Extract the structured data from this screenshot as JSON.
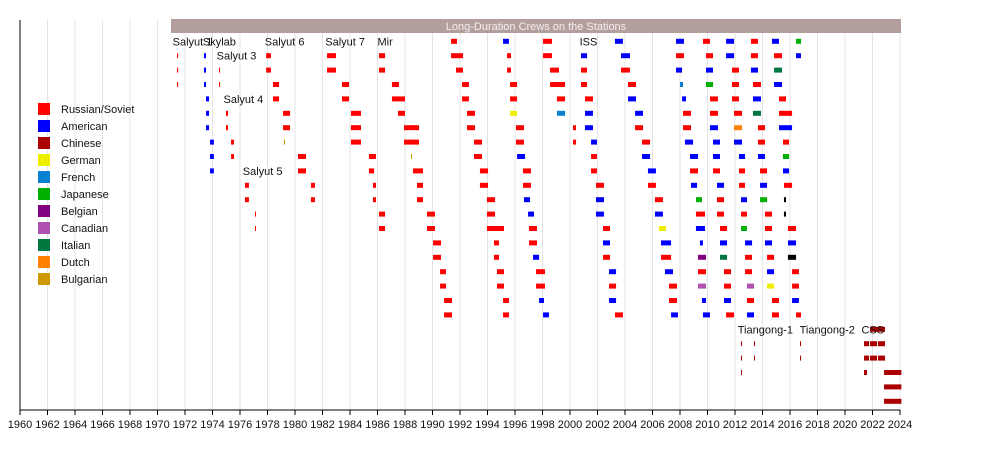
{
  "chart_data": {
    "type": "timeline",
    "title": "Long-Duration Crews on the Stations",
    "xlim": [
      1960,
      2024
    ],
    "x_ticks": [
      "1960",
      "1962",
      "1964",
      "1966",
      "1968",
      "1970",
      "1972",
      "1974",
      "1976",
      "1978",
      "1980",
      "1982",
      "1984",
      "1986",
      "1988",
      "1990",
      "1992",
      "1994",
      "1996",
      "1998",
      "2000",
      "2002",
      "2004",
      "2006",
      "2008",
      "2010",
      "2012",
      "2014",
      "2016",
      "2018",
      "2020",
      "2022",
      "2024"
    ],
    "grid": "vertical, every 2 years",
    "legend_placement": "left",
    "legend": [
      {
        "key": "R",
        "label": "Russian/Soviet",
        "color": "#ff0000"
      },
      {
        "key": "A",
        "label": "American",
        "color": "#0000ff"
      },
      {
        "key": "C",
        "label": "Chinese",
        "color": "#aa0000"
      },
      {
        "key": "G",
        "label": "German",
        "color": "#eeee00"
      },
      {
        "key": "F",
        "label": "French",
        "color": "#0a80d0"
      },
      {
        "key": "J",
        "label": "Japanese",
        "color": "#00b000"
      },
      {
        "key": "B",
        "label": "Belgian",
        "color": "#800080"
      },
      {
        "key": "N",
        "label": "Canadian",
        "color": "#b050b0"
      },
      {
        "key": "I",
        "label": "Italian",
        "color": "#007840"
      },
      {
        "key": "D",
        "label": "Dutch",
        "color": "#ff8000"
      },
      {
        "key": "U",
        "label": "Bulgarian",
        "color": "#cc9900"
      }
    ],
    "unlisted_colors": {
      "K": "#000000"
    },
    "title_bar_color": "#b39f9d",
    "stations": [
      {
        "label": "Salyut 1",
        "year": 1971.1,
        "row": 0
      },
      {
        "label": "Skylab",
        "year": 1973.3,
        "row": 0
      },
      {
        "label": "Salyut 3",
        "year": 1974.3,
        "row": 1
      },
      {
        "label": "Salyut 4",
        "year": 1974.8,
        "row": 4
      },
      {
        "label": "Salyut 5",
        "year": 1976.2,
        "row": 9
      },
      {
        "label": "Salyut 6",
        "year": 1977.8,
        "row": 0
      },
      {
        "label": "Salyut 7",
        "year": 1982.2,
        "row": 0
      },
      {
        "label": "Mir",
        "year": 1986.0,
        "row": 0
      },
      {
        "label": "ISS",
        "year": 2000.7,
        "row": 0
      },
      {
        "label": "Tiangong-1",
        "year": 2012.2,
        "row": 20
      },
      {
        "label": "Tiangong-2",
        "year": 2016.7,
        "row": 20
      },
      {
        "label": "CSS",
        "year": 2021.2,
        "row": 20
      }
    ],
    "bars_format": "[first_row, last_row, start_year, end_year, nationality_key]",
    "bars": [
      [
        1,
        3,
        1971.42,
        1971.5,
        "R"
      ],
      [
        1,
        3,
        1973.38,
        1973.53,
        "A"
      ],
      [
        4,
        6,
        1973.53,
        1973.75,
        "A"
      ],
      [
        7,
        9,
        1973.82,
        1974.1,
        "A"
      ],
      [
        2,
        3,
        1974.47,
        1974.55,
        "R"
      ],
      [
        5,
        6,
        1974.98,
        1975.13,
        "R"
      ],
      [
        7,
        8,
        1975.35,
        1975.56,
        "R"
      ],
      [
        10,
        11,
        1976.36,
        1976.65,
        "R"
      ],
      [
        12,
        13,
        1977.09,
        1977.16,
        "R"
      ],
      [
        1,
        2,
        1977.9,
        1978.25,
        "R"
      ],
      [
        3,
        4,
        1978.4,
        1978.84,
        "R"
      ],
      [
        5,
        6,
        1979.13,
        1979.64,
        "R"
      ],
      [
        7,
        7,
        1979.2,
        1979.27,
        "U"
      ],
      [
        8,
        9,
        1980.22,
        1980.8,
        "R"
      ],
      [
        10,
        11,
        1981.16,
        1981.45,
        "R"
      ],
      [
        1,
        2,
        1982.33,
        1982.98,
        "R"
      ],
      [
        3,
        4,
        1983.42,
        1983.93,
        "R"
      ],
      [
        5,
        7,
        1984.07,
        1984.8,
        "R"
      ],
      [
        8,
        8,
        1985.38,
        1985.89,
        "R"
      ],
      [
        9,
        9,
        1985.38,
        1985.75,
        "R"
      ],
      [
        10,
        11,
        1985.67,
        1985.89,
        "R"
      ],
      [
        12,
        13,
        1986.11,
        1986.55,
        "R"
      ],
      [
        1,
        2,
        1986.11,
        1986.55,
        "R"
      ],
      [
        3,
        3,
        1987.05,
        1987.56,
        "R"
      ],
      [
        4,
        4,
        1987.05,
        1988.0,
        "R"
      ],
      [
        5,
        5,
        1987.49,
        1988.0,
        "R"
      ],
      [
        6,
        7,
        1987.93,
        1989.02,
        "R"
      ],
      [
        8,
        8,
        1988.44,
        1988.5,
        "U"
      ],
      [
        9,
        9,
        1988.58,
        1989.31,
        "R"
      ],
      [
        10,
        11,
        1988.87,
        1989.31,
        "R"
      ],
      [
        12,
        13,
        1989.6,
        1990.18,
        "R"
      ],
      [
        14,
        15,
        1990.04,
        1990.62,
        "R"
      ],
      [
        16,
        17,
        1990.55,
        1990.98,
        "R"
      ],
      [
        18,
        19,
        1990.84,
        1991.42,
        "R"
      ],
      [
        0,
        0,
        1991.35,
        1991.78,
        "R"
      ],
      [
        1,
        1,
        1991.35,
        1992.22,
        "R"
      ],
      [
        2,
        2,
        1991.71,
        1992.22,
        "R"
      ],
      [
        3,
        4,
        1992.15,
        1992.65,
        "R"
      ],
      [
        5,
        6,
        1992.51,
        1993.09,
        "R"
      ],
      [
        7,
        8,
        1993.02,
        1993.6,
        "R"
      ],
      [
        9,
        10,
        1993.45,
        1994.04,
        "R"
      ],
      [
        11,
        12,
        1993.96,
        1994.55,
        "R"
      ],
      [
        13,
        13,
        1993.96,
        1995.2,
        "R"
      ],
      [
        14,
        15,
        1994.47,
        1994.84,
        "R"
      ],
      [
        16,
        17,
        1994.69,
        1995.2,
        "R"
      ],
      [
        18,
        19,
        1995.13,
        1995.56,
        "R"
      ],
      [
        0,
        0,
        1995.13,
        1995.56,
        "A"
      ],
      [
        1,
        2,
        1995.42,
        1995.71,
        "R"
      ],
      [
        3,
        4,
        1995.64,
        1996.15,
        "R"
      ],
      [
        5,
        5,
        1995.64,
        1996.15,
        "G"
      ],
      [
        6,
        7,
        1996.07,
        1996.65,
        "R"
      ],
      [
        8,
        8,
        1996.15,
        1996.73,
        "A"
      ],
      [
        9,
        10,
        1996.58,
        1997.16,
        "R"
      ],
      [
        11,
        11,
        1996.65,
        1997.09,
        "A"
      ],
      [
        12,
        12,
        1996.95,
        1997.38,
        "A"
      ],
      [
        13,
        14,
        1997.02,
        1997.6,
        "R"
      ],
      [
        15,
        15,
        1997.31,
        1997.75,
        "A"
      ],
      [
        16,
        17,
        1997.53,
        1998.18,
        "R"
      ],
      [
        18,
        18,
        1997.75,
        1998.11,
        "A"
      ],
      [
        19,
        19,
        1998.04,
        1998.47,
        "A"
      ],
      [
        0,
        1,
        1998.04,
        1998.69,
        "R"
      ],
      [
        2,
        2,
        1998.55,
        1999.2,
        "R"
      ],
      [
        3,
        3,
        1998.55,
        1999.64,
        "R"
      ],
      [
        4,
        4,
        1999.05,
        1999.64,
        "R"
      ],
      [
        5,
        5,
        1999.05,
        1999.64,
        "F"
      ],
      [
        6,
        7,
        2000.22,
        2000.44,
        "R"
      ],
      [
        1,
        1,
        2000.8,
        2001.24,
        "A"
      ],
      [
        2,
        3,
        2000.8,
        2001.24,
        "R"
      ],
      [
        4,
        4,
        2001.09,
        2001.67,
        "R"
      ],
      [
        5,
        6,
        2001.09,
        2001.67,
        "A"
      ],
      [
        7,
        7,
        2001.53,
        2001.96,
        "A"
      ],
      [
        8,
        9,
        2001.53,
        2001.96,
        "R"
      ],
      [
        10,
        10,
        2001.89,
        2002.47,
        "R"
      ],
      [
        11,
        12,
        2001.89,
        2002.47,
        "A"
      ],
      [
        13,
        13,
        2002.4,
        2002.91,
        "R"
      ],
      [
        14,
        14,
        2002.4,
        2002.91,
        "A"
      ],
      [
        15,
        15,
        2002.4,
        2002.91,
        "R"
      ],
      [
        16,
        16,
        2002.84,
        2003.35,
        "A"
      ],
      [
        17,
        17,
        2002.84,
        2003.35,
        "R"
      ],
      [
        18,
        18,
        2002.84,
        2003.35,
        "A"
      ],
      [
        19,
        19,
        2003.27,
        2003.85,
        "R"
      ],
      [
        0,
        0,
        2003.27,
        2003.85,
        "A"
      ],
      [
        1,
        1,
        2003.71,
        2004.36,
        "A"
      ],
      [
        2,
        2,
        2003.71,
        2004.36,
        "R"
      ],
      [
        3,
        3,
        2004.22,
        2004.8,
        "R"
      ],
      [
        4,
        4,
        2004.22,
        2004.8,
        "A"
      ],
      [
        5,
        5,
        2004.73,
        2005.31,
        "A"
      ],
      [
        6,
        6,
        2004.73,
        2005.31,
        "R"
      ],
      [
        7,
        7,
        2005.24,
        2005.82,
        "R"
      ],
      [
        8,
        8,
        2005.24,
        2005.82,
        "A"
      ],
      [
        9,
        9,
        2005.67,
        2006.25,
        "A"
      ],
      [
        10,
        10,
        2005.67,
        2006.25,
        "R"
      ],
      [
        11,
        11,
        2006.18,
        2006.76,
        "R"
      ],
      [
        12,
        12,
        2006.18,
        2006.76,
        "A"
      ],
      [
        13,
        13,
        2006.47,
        2006.98,
        "G"
      ],
      [
        14,
        14,
        2006.62,
        2007.35,
        "A"
      ],
      [
        15,
        15,
        2006.62,
        2007.35,
        "R"
      ],
      [
        16,
        16,
        2006.91,
        2007.49,
        "A"
      ],
      [
        17,
        18,
        2007.2,
        2007.78,
        "R"
      ],
      [
        19,
        19,
        2007.35,
        2007.85,
        "A"
      ],
      [
        0,
        0,
        2007.71,
        2008.29,
        "A"
      ],
      [
        1,
        1,
        2007.71,
        2008.29,
        "R"
      ],
      [
        2,
        2,
        2007.71,
        2008.15,
        "A"
      ],
      [
        3,
        3,
        2008.0,
        2008.22,
        "F"
      ],
      [
        4,
        4,
        2008.15,
        2008.44,
        "A"
      ],
      [
        5,
        6,
        2008.22,
        2008.8,
        "R"
      ],
      [
        7,
        7,
        2008.36,
        2008.95,
        "A"
      ],
      [
        8,
        8,
        2008.73,
        2009.31,
        "A"
      ],
      [
        9,
        9,
        2008.73,
        2009.31,
        "R"
      ],
      [
        10,
        10,
        2008.8,
        2009.24,
        "A"
      ],
      [
        11,
        11,
        2009.16,
        2009.6,
        "J"
      ],
      [
        12,
        12,
        2009.16,
        2009.82,
        "R"
      ],
      [
        13,
        13,
        2009.16,
        2009.82,
        "A"
      ],
      [
        14,
        14,
        2009.45,
        2009.67,
        "A"
      ],
      [
        15,
        15,
        2009.31,
        2009.89,
        "B"
      ],
      [
        16,
        16,
        2009.31,
        2009.89,
        "R"
      ],
      [
        17,
        17,
        2009.31,
        2009.89,
        "N"
      ],
      [
        18,
        18,
        2009.6,
        2009.89,
        "A"
      ],
      [
        19,
        19,
        2009.67,
        2010.18,
        "A"
      ],
      [
        0,
        0,
        2009.67,
        2010.18,
        "R"
      ],
      [
        1,
        1,
        2009.89,
        2010.4,
        "R"
      ],
      [
        2,
        2,
        2009.89,
        2010.4,
        "A"
      ],
      [
        3,
        3,
        2009.89,
        2010.4,
        "J"
      ],
      [
        4,
        5,
        2010.18,
        2010.76,
        "R"
      ],
      [
        6,
        6,
        2010.18,
        2010.76,
        "A"
      ],
      [
        7,
        8,
        2010.4,
        2010.91,
        "A"
      ],
      [
        9,
        9,
        2010.4,
        2010.91,
        "R"
      ],
      [
        10,
        10,
        2010.69,
        2011.2,
        "A"
      ],
      [
        11,
        12,
        2010.69,
        2011.2,
        "R"
      ],
      [
        13,
        13,
        2010.91,
        2011.42,
        "R"
      ],
      [
        14,
        14,
        2010.91,
        2011.42,
        "A"
      ],
      [
        15,
        15,
        2010.91,
        2011.42,
        "I"
      ],
      [
        16,
        17,
        2011.2,
        2011.71,
        "R"
      ],
      [
        18,
        18,
        2011.2,
        2011.71,
        "A"
      ],
      [
        19,
        19,
        2011.35,
        2011.93,
        "R"
      ],
      [
        0,
        1,
        2011.35,
        2011.93,
        "A"
      ],
      [
        2,
        4,
        2011.78,
        2012.29,
        "R"
      ],
      [
        5,
        5,
        2011.93,
        2012.51,
        "R"
      ],
      [
        6,
        6,
        2011.93,
        2012.51,
        "D"
      ],
      [
        7,
        7,
        2011.93,
        2012.51,
        "A"
      ],
      [
        8,
        8,
        2012.29,
        2012.73,
        "A"
      ],
      [
        9,
        10,
        2012.29,
        2012.73,
        "R"
      ],
      [
        11,
        11,
        2012.44,
        2012.87,
        "A"
      ],
      [
        12,
        12,
        2012.44,
        2012.87,
        "R"
      ],
      [
        13,
        13,
        2012.44,
        2012.87,
        "J"
      ],
      [
        14,
        14,
        2012.73,
        2013.24,
        "A"
      ],
      [
        15,
        16,
        2012.73,
        2013.24,
        "R"
      ],
      [
        17,
        17,
        2012.87,
        2013.38,
        "N"
      ],
      [
        18,
        18,
        2012.87,
        2013.38,
        "R"
      ],
      [
        19,
        19,
        2012.87,
        2013.38,
        "A"
      ],
      [
        0,
        1,
        2013.16,
        2013.67,
        "R"
      ],
      [
        2,
        2,
        2013.16,
        2013.67,
        "A"
      ],
      [
        3,
        3,
        2013.31,
        2013.89,
        "R"
      ],
      [
        4,
        4,
        2013.31,
        2013.89,
        "A"
      ],
      [
        5,
        5,
        2013.31,
        2013.89,
        "I"
      ],
      [
        6,
        7,
        2013.67,
        2014.18,
        "R"
      ],
      [
        8,
        8,
        2013.67,
        2014.18,
        "A"
      ],
      [
        9,
        9,
        2013.82,
        2014.33,
        "R"
      ],
      [
        10,
        10,
        2013.82,
        2014.33,
        "A"
      ],
      [
        11,
        11,
        2013.82,
        2014.33,
        "J"
      ],
      [
        12,
        13,
        2014.18,
        2014.69,
        "R"
      ],
      [
        14,
        14,
        2014.18,
        2014.69,
        "A"
      ],
      [
        15,
        15,
        2014.33,
        2014.84,
        "R"
      ],
      [
        16,
        16,
        2014.33,
        2014.84,
        "A"
      ],
      [
        17,
        17,
        2014.33,
        2014.84,
        "G"
      ],
      [
        18,
        19,
        2014.69,
        2015.2,
        "R"
      ],
      [
        0,
        0,
        2014.69,
        2015.2,
        "A"
      ],
      [
        1,
        1,
        2014.84,
        2015.42,
        "R"
      ],
      [
        2,
        2,
        2014.84,
        2015.42,
        "I"
      ],
      [
        3,
        3,
        2014.84,
        2015.42,
        "A"
      ],
      [
        4,
        4,
        2015.2,
        2015.71,
        "R"
      ],
      [
        5,
        5,
        2015.2,
        2016.15,
        "R"
      ],
      [
        6,
        6,
        2015.2,
        2016.15,
        "A"
      ],
      [
        7,
        7,
        2015.49,
        2015.93,
        "R"
      ],
      [
        8,
        8,
        2015.49,
        2015.93,
        "J"
      ],
      [
        9,
        9,
        2015.49,
        2015.93,
        "A"
      ],
      [
        10,
        10,
        2015.56,
        2016.15,
        "R"
      ],
      [
        11,
        12,
        2015.56,
        2015.71,
        "K"
      ],
      [
        13,
        13,
        2015.85,
        2016.44,
        "R"
      ],
      [
        14,
        14,
        2015.85,
        2016.44,
        "A"
      ],
      [
        15,
        15,
        2015.85,
        2016.44,
        "K"
      ],
      [
        16,
        17,
        2016.15,
        2016.65,
        "R"
      ],
      [
        18,
        18,
        2016.15,
        2016.65,
        "A"
      ],
      [
        19,
        19,
        2016.44,
        2016.8,
        "R"
      ],
      [
        0,
        0,
        2016.44,
        2016.8,
        "J"
      ],
      [
        1,
        1,
        2016.44,
        2016.8,
        "A"
      ],
      [
        21,
        23,
        2012.44,
        2012.51,
        "C"
      ],
      [
        21,
        22,
        2013.38,
        2013.45,
        "C"
      ],
      [
        21,
        22,
        2016.73,
        2016.8,
        "C"
      ],
      [
        20,
        20,
        2021.82,
        2022.91,
        "C"
      ],
      [
        21,
        22,
        2021.38,
        2021.75,
        "C"
      ],
      [
        21,
        22,
        2021.82,
        2022.33,
        "C"
      ],
      [
        21,
        22,
        2022.4,
        2022.91,
        "C"
      ],
      [
        23,
        23,
        2021.38,
        2021.6,
        "C"
      ],
      [
        23,
        25,
        2022.84,
        2024.1,
        "C"
      ]
    ]
  }
}
